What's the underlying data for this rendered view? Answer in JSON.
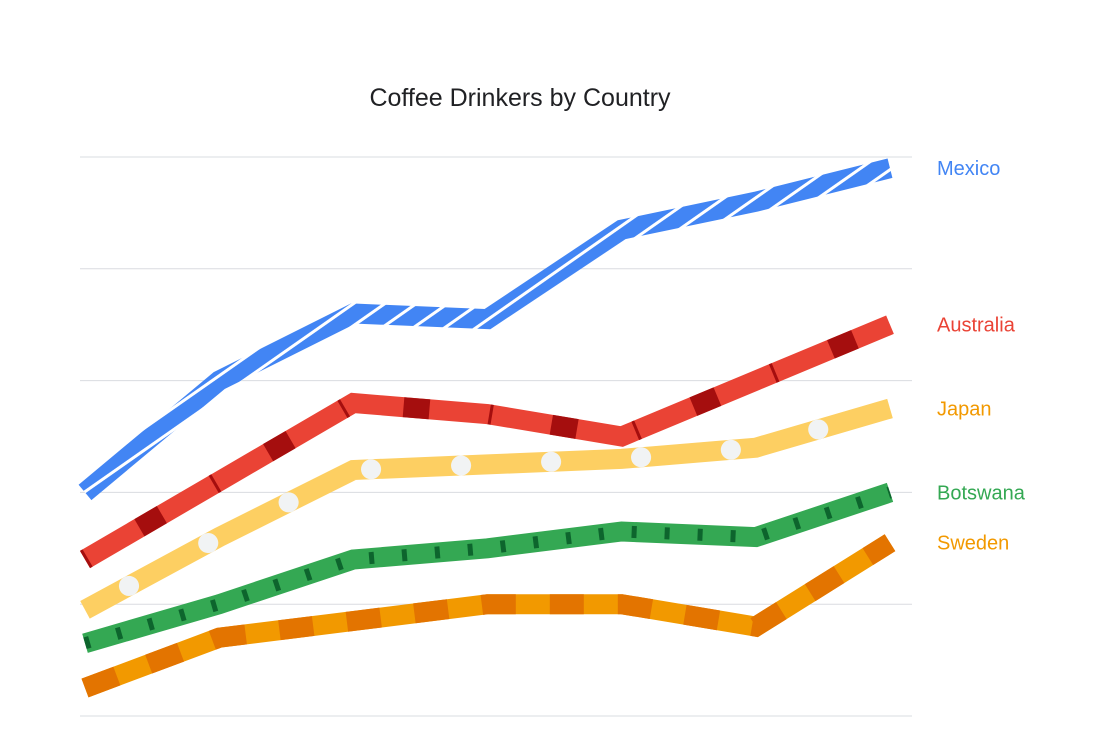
{
  "chart_data": {
    "type": "line",
    "title": "Coffee Drinkers by Country",
    "xlabel": "",
    "ylabel": "",
    "x": [
      1,
      2,
      3,
      4,
      5,
      6,
      7
    ],
    "ylim": [
      0,
      5
    ],
    "grid": true,
    "legend": "right, labels at line ends",
    "series": [
      {
        "name": "Mexico",
        "color": "#4285f4",
        "pattern": "white-diagonal-stripes",
        "values": [
          2.0,
          3.0,
          3.6,
          3.55,
          4.35,
          4.6,
          4.9
        ]
      },
      {
        "name": "Australia",
        "color": "#ea4335",
        "pattern": "dark-red-segments",
        "values": [
          1.4,
          2.1,
          2.8,
          2.7,
          2.5,
          3.0,
          3.5
        ]
      },
      {
        "name": "Japan",
        "color": "#fdcf62",
        "pattern": "white-dots",
        "values": [
          0.95,
          1.6,
          2.2,
          2.25,
          2.3,
          2.4,
          2.75
        ]
      },
      {
        "name": "Botswana",
        "color": "#34a853",
        "pattern": "dark-green-dashes",
        "values": [
          0.65,
          1.0,
          1.4,
          1.5,
          1.65,
          1.6,
          2.0
        ]
      },
      {
        "name": "Sweden",
        "color": "#f29900",
        "pattern": "orange-bands",
        "values": [
          0.25,
          0.7,
          0.85,
          1.0,
          1.0,
          0.8,
          1.55
        ]
      }
    ]
  }
}
